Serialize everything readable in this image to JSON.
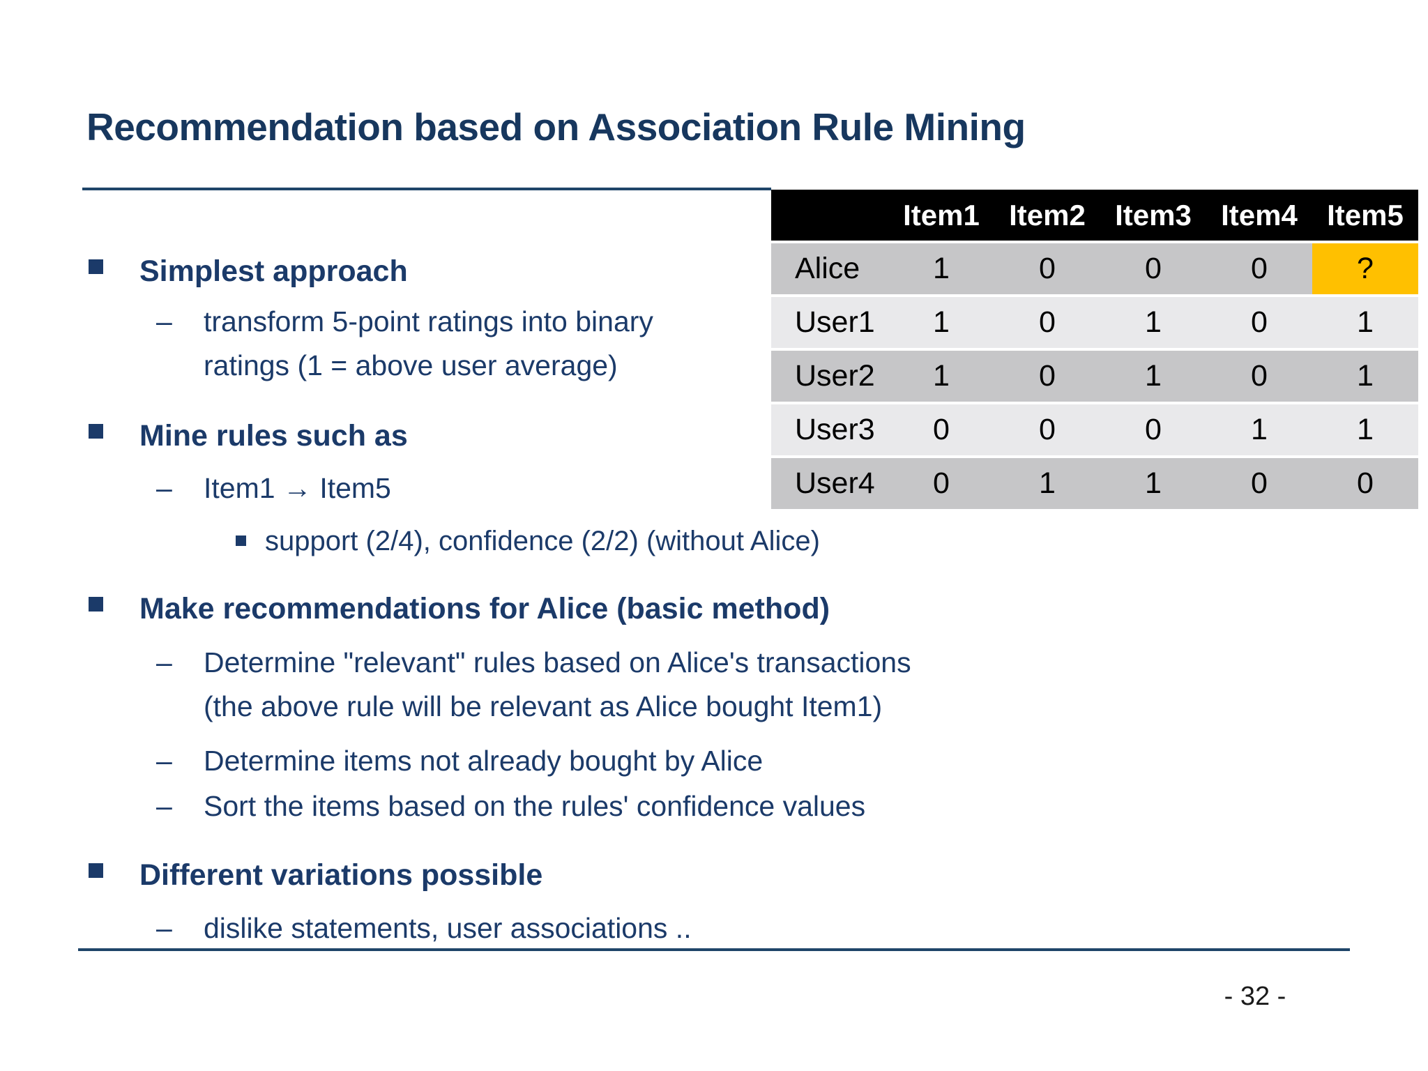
{
  "title": "Recommendation based on Association Rule Mining",
  "bullets": {
    "b1": {
      "level": 1,
      "lines": [
        "Simplest approach"
      ]
    },
    "b1s1": {
      "level": 2,
      "lines": [
        "transform 5-point ratings into binary",
        "ratings (1 = above user average)"
      ]
    },
    "b2": {
      "level": 1,
      "lines": [
        "Mine rules such as"
      ]
    },
    "b2s1": {
      "level": 2,
      "lines": [
        "Item1 → Item5"
      ]
    },
    "b2s2": {
      "level": 3,
      "lines": [
        "support (2/4), confidence (2/2) (without Alice)"
      ]
    },
    "b3": {
      "level": 1,
      "lines": [
        "Make recommendations for Alice (basic method)"
      ]
    },
    "b3s1": {
      "level": 2,
      "lines": [
        "Determine \"relevant\" rules based on Alice's transactions",
        "(the above rule will be relevant as Alice bought Item1)"
      ]
    },
    "b3s2": {
      "level": 2,
      "lines": [
        "Determine items not already bought by Alice"
      ]
    },
    "b3s3": {
      "level": 2,
      "lines": [
        "Sort the items based on the rules' confidence values"
      ]
    },
    "b4": {
      "level": 1,
      "lines": [
        "Different variations possible"
      ]
    },
    "b4s1": {
      "level": 2,
      "lines": [
        "dislike statements, user associations .."
      ]
    }
  },
  "marker_glyphs": {
    "dash": "–"
  },
  "table": {
    "columns": [
      "Item1",
      "Item2",
      "Item3",
      "Item4",
      "Item5"
    ],
    "rows": [
      {
        "user": "Alice",
        "values": [
          "1",
          "0",
          "0",
          "0",
          "?"
        ]
      },
      {
        "user": "User1",
        "values": [
          "1",
          "0",
          "1",
          "0",
          "1"
        ]
      },
      {
        "user": "User2",
        "values": [
          "1",
          "0",
          "1",
          "0",
          "1"
        ]
      },
      {
        "user": "User3",
        "values": [
          "0",
          "0",
          "0",
          "1",
          "1"
        ]
      },
      {
        "user": "User4",
        "values": [
          "0",
          "1",
          "1",
          "0",
          "0"
        ]
      }
    ],
    "highlight": {
      "row": "Alice",
      "column": "Item5",
      "cell_value": "?",
      "color": "#FFC000"
    }
  },
  "footer": {
    "page_number": "- 32 -"
  },
  "colors": {
    "text_navy": "#1B3A69",
    "title_navy": "#17375E",
    "rule_navy": "#1F4569",
    "table_header_bg": "#000000",
    "table_header_text": "#ffffff",
    "row_dark": "#C6C6C8",
    "row_light": "#E9E9EB",
    "highlight_yellow": "#FFC000"
  }
}
